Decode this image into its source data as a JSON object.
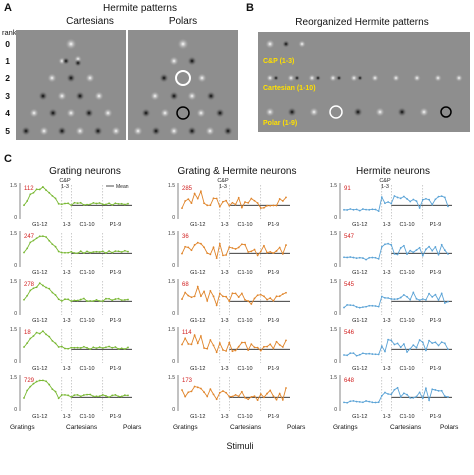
{
  "panelA": {
    "letter": "A",
    "title": "Hermite patterns",
    "rank_label": "rank",
    "ranks": [
      "0",
      "1",
      "2",
      "3",
      "4",
      "5"
    ],
    "sub_titles": [
      "Cartesians",
      "Polars"
    ]
  },
  "panelB": {
    "letter": "B",
    "title": "Reorganized Hermite patterns",
    "rows": [
      "C&P (1-3)",
      "Cartesian (1-10)",
      "Polar (1-9)"
    ]
  },
  "panelC": {
    "letter": "C",
    "columns": [
      {
        "title": "Grating neurons",
        "color": "#79b833",
        "counts": [
          "112",
          "247",
          "278",
          "18",
          "729"
        ],
        "segments": [
          "G1-12",
          "1-3",
          "C1-10",
          "P1-9"
        ],
        "top_label": "C&P",
        "top_label2": "1-3",
        "legend": "Mean"
      },
      {
        "title": "Grating & Hermite neurons",
        "color": "#e0852b",
        "counts": [
          "285",
          "36",
          "68",
          "114",
          "173"
        ],
        "segments": [
          "G1-12",
          "1-3",
          "C1-10",
          "P1-9"
        ],
        "top_label": "C&P",
        "top_label2": "1-3"
      },
      {
        "title": "Hermite neurons",
        "color": "#5ba3d6",
        "counts": [
          "91",
          "547",
          "545",
          "546",
          "648"
        ],
        "segments": [
          "G1-12",
          "1-3",
          "C1-10",
          "P1-9"
        ],
        "top_label": "C&P",
        "top_label2": "1-3"
      }
    ],
    "x_categories": [
      "Gratings",
      "Cartesians",
      "Polars"
    ],
    "y_ticks": [
      "0",
      "1.5"
    ],
    "x_title": "Stimuli"
  }
}
